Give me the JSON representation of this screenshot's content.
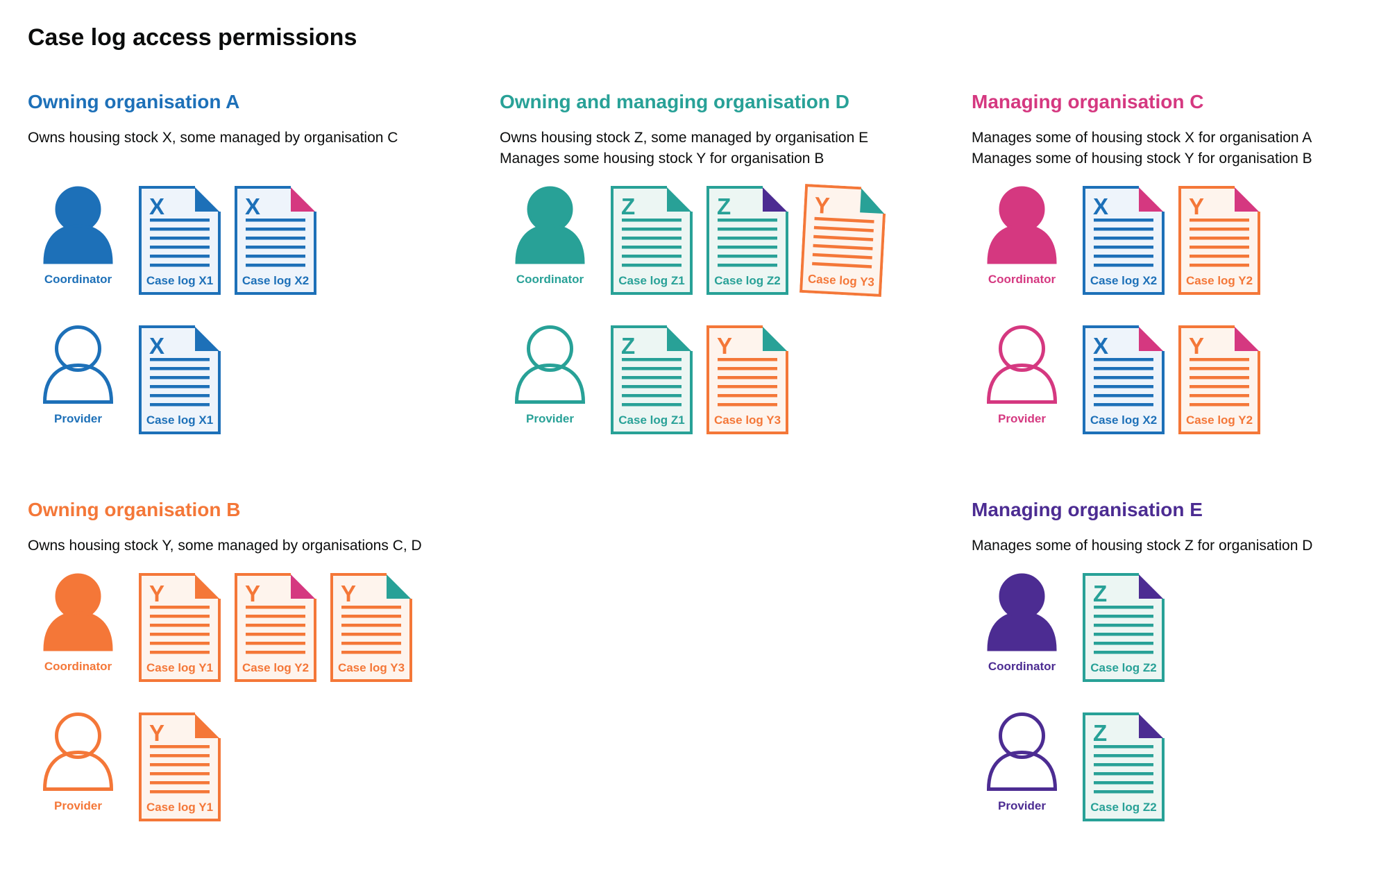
{
  "title": "Case log access permissions",
  "palette": {
    "blue": {
      "main": "#1d70b8",
      "tint": "#eef4fb"
    },
    "teal": {
      "main": "#28a197",
      "tint": "#ecf6f3"
    },
    "pink": {
      "main": "#d53880",
      "tint": "#fbeef5"
    },
    "orange": {
      "main": "#f47738",
      "tint": "#fef4ed"
    },
    "purple": {
      "main": "#4c2c92",
      "tint": "#efecf7"
    },
    "text": {
      "main": "#0b0c0c"
    }
  },
  "sections": [
    {
      "id": "owning-organisation-a",
      "title": "Owning organisation A",
      "color": "blue",
      "description": [
        "Owns housing stock X, some managed by organisation C"
      ],
      "rows": [
        {
          "role": "Coordinator",
          "icon": "person-filled-icon",
          "docs": [
            {
              "letter": "X",
              "label": "Case log X1",
              "doc_color": "blue",
              "fold_color": "blue",
              "tilt": 0
            },
            {
              "letter": "X",
              "label": "Case log X2",
              "doc_color": "blue",
              "fold_color": "pink",
              "tilt": 0
            }
          ]
        },
        {
          "role": "Provider",
          "icon": "person-outline-icon",
          "docs": [
            {
              "letter": "X",
              "label": "Case log X1",
              "doc_color": "blue",
              "fold_color": "blue",
              "tilt": 0
            }
          ]
        }
      ]
    },
    {
      "id": "owning-and-managing-organisation-d",
      "title": "Owning and managing organisation D",
      "color": "teal",
      "description": [
        "Owns housing stock Z, some managed by organisation E",
        "Manages some housing stock Y for organisation B"
      ],
      "rows": [
        {
          "role": "Coordinator",
          "icon": "person-filled-icon",
          "docs": [
            {
              "letter": "Z",
              "label": "Case log Z1",
              "doc_color": "teal",
              "fold_color": "teal",
              "tilt": 0
            },
            {
              "letter": "Z",
              "label": "Case log Z2",
              "doc_color": "teal",
              "fold_color": "purple",
              "tilt": 0
            },
            {
              "letter": "Y",
              "label": "Case log Y3",
              "doc_color": "orange",
              "fold_color": "teal",
              "tilt": 3
            }
          ]
        },
        {
          "role": "Provider",
          "icon": "person-outline-icon",
          "docs": [
            {
              "letter": "Z",
              "label": "Case log Z1",
              "doc_color": "teal",
              "fold_color": "teal",
              "tilt": 0
            },
            {
              "letter": "Y",
              "label": "Case log Y3",
              "doc_color": "orange",
              "fold_color": "teal",
              "tilt": 0
            }
          ]
        }
      ]
    },
    {
      "id": "managing-organisation-c",
      "title": "Managing organisation C",
      "color": "pink",
      "description": [
        "Manages some of housing stock X for organisation A",
        "Manages some of housing stock Y for organisation B"
      ],
      "rows": [
        {
          "role": "Coordinator",
          "icon": "person-filled-icon",
          "docs": [
            {
              "letter": "X",
              "label": "Case log X2",
              "doc_color": "blue",
              "fold_color": "pink",
              "tilt": 0
            },
            {
              "letter": "Y",
              "label": "Case log Y2",
              "doc_color": "orange",
              "fold_color": "pink",
              "tilt": 0
            }
          ]
        },
        {
          "role": "Provider",
          "icon": "person-outline-icon",
          "docs": [
            {
              "letter": "X",
              "label": "Case log X2",
              "doc_color": "blue",
              "fold_color": "pink",
              "tilt": 0
            },
            {
              "letter": "Y",
              "label": "Case log Y2",
              "doc_color": "orange",
              "fold_color": "pink",
              "tilt": 0
            }
          ]
        }
      ]
    },
    {
      "id": "owning-organisation-b",
      "title": "Owning organisation B",
      "color": "orange",
      "description": [
        "Owns housing stock Y, some managed by organisations C, D"
      ],
      "rows": [
        {
          "role": "Coordinator",
          "icon": "person-filled-icon",
          "docs": [
            {
              "letter": "Y",
              "label": "Case log Y1",
              "doc_color": "orange",
              "fold_color": "orange",
              "tilt": 0
            },
            {
              "letter": "Y",
              "label": "Case log Y2",
              "doc_color": "orange",
              "fold_color": "pink",
              "tilt": 0
            },
            {
              "letter": "Y",
              "label": "Case log Y3",
              "doc_color": "orange",
              "fold_color": "teal",
              "tilt": 0
            }
          ]
        },
        {
          "role": "Provider",
          "icon": "person-outline-icon",
          "docs": [
            {
              "letter": "Y",
              "label": "Case log Y1",
              "doc_color": "orange",
              "fold_color": "orange",
              "tilt": 0
            }
          ]
        }
      ]
    },
    {
      "id": "managing-organisation-e",
      "title": "Managing organisation E",
      "color": "purple",
      "description": [
        "Manages some of housing stock Z for organisation D"
      ],
      "rows": [
        {
          "role": "Coordinator",
          "icon": "person-filled-icon",
          "docs": [
            {
              "letter": "Z",
              "label": "Case log Z2",
              "doc_color": "teal",
              "fold_color": "purple",
              "tilt": 0
            }
          ]
        },
        {
          "role": "Provider",
          "icon": "person-outline-icon",
          "docs": [
            {
              "letter": "Z",
              "label": "Case log Z2",
              "doc_color": "teal",
              "fold_color": "purple",
              "tilt": 0
            }
          ]
        }
      ]
    }
  ]
}
